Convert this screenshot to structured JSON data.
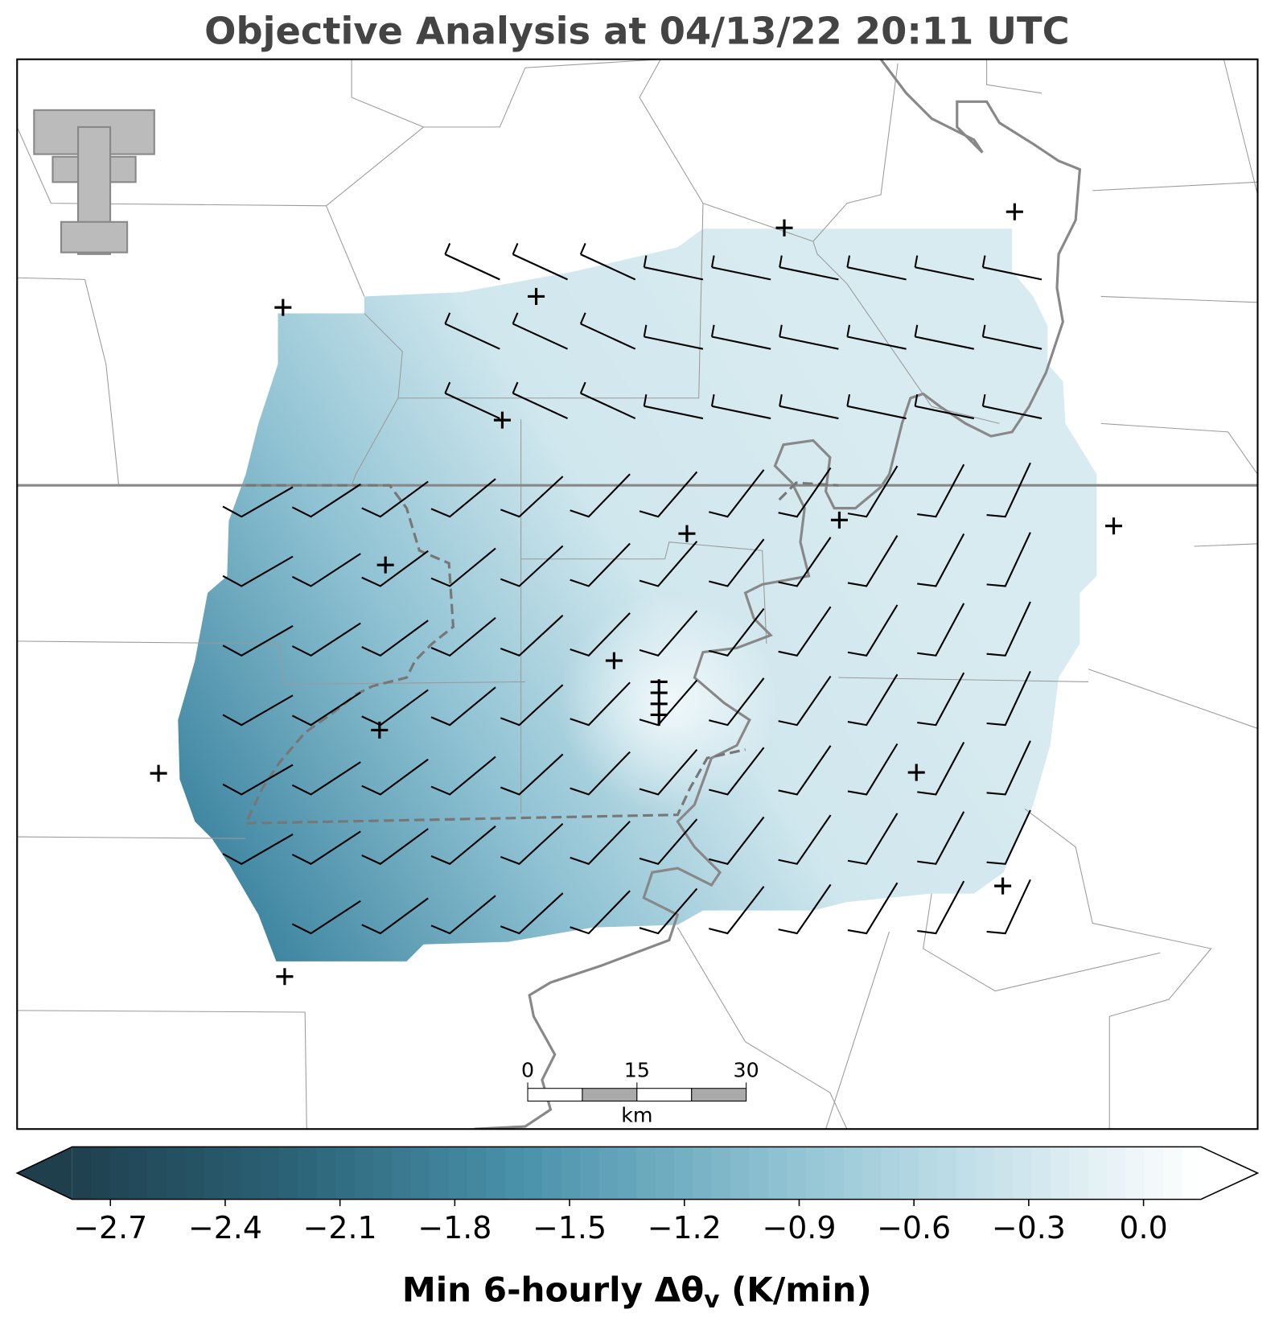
{
  "title": "Objective Analysis at 04/13/22 20:11 UTC",
  "scale_bar": {
    "ticks": [
      0,
      15,
      30
    ],
    "unit": "km"
  },
  "colorbar": {
    "lim": [
      -2.8,
      0.15
    ],
    "ticks": [
      {
        "value": -2.7,
        "label": "−2.7"
      },
      {
        "value": -2.4,
        "label": "−2.4"
      },
      {
        "value": -2.1,
        "label": "−2.1"
      },
      {
        "value": -1.8,
        "label": "−1.8"
      },
      {
        "value": -1.5,
        "label": "−1.5"
      },
      {
        "value": -1.2,
        "label": "−1.2"
      },
      {
        "value": -0.9,
        "label": "−0.9"
      },
      {
        "value": -0.6,
        "label": "−0.6"
      },
      {
        "value": -0.3,
        "label": "−0.3"
      },
      {
        "value": 0.0,
        "label": "0.0"
      }
    ],
    "colors": [
      "#1f3f4d",
      "#2c6478",
      "#4a92ab",
      "#86bccd",
      "#c3e0e9",
      "#ffffff"
    ],
    "label": {
      "prefix": "Min 6-hourly Δθ",
      "subscript": "v",
      "suffix": " (K/min)"
    }
  }
}
